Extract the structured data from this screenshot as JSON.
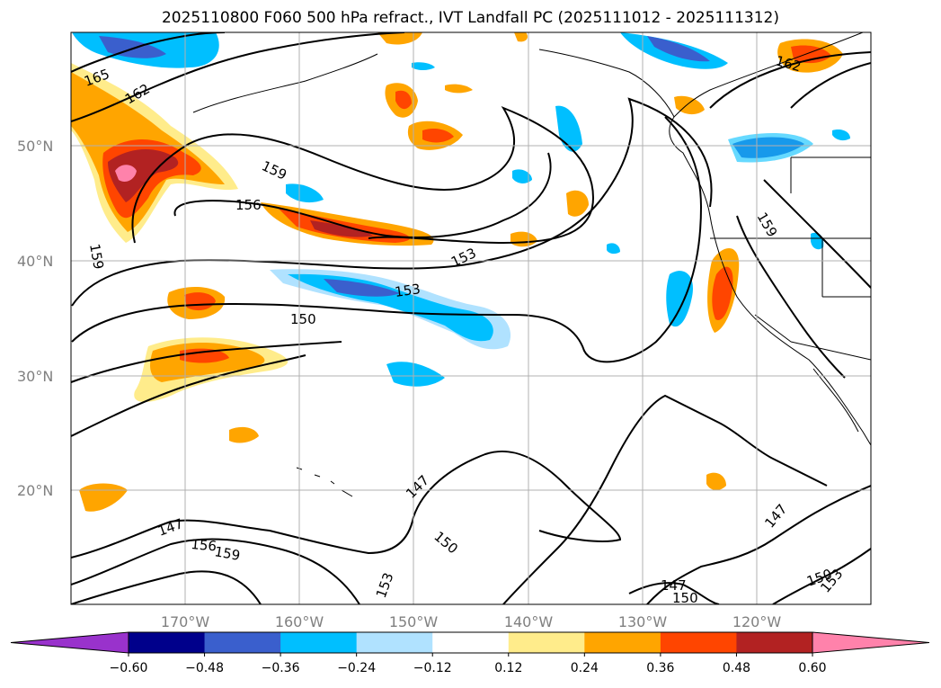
{
  "title": "2025110800 F060 500 hPa refract., IVT Landfall PC (2025111012 - 2025111312)",
  "lat_labels": [
    "50°N",
    "40°N",
    "30°N",
    "20°N"
  ],
  "lon_labels": [
    "170°W",
    "160°W",
    "150°W",
    "140°W",
    "130°W",
    "120°W"
  ],
  "contour_labels": [
    "165",
    "162",
    "159",
    "156",
    "153",
    "153",
    "150",
    "159",
    "147",
    "156",
    "159",
    "147",
    "150",
    "153",
    "147",
    "150",
    "147",
    "150",
    "153",
    "159",
    "162"
  ],
  "colorbar": {
    "ticks": [
      "−0.60",
      "−0.48",
      "−0.36",
      "−0.24",
      "−0.12",
      "0.12",
      "0.24",
      "0.36",
      "0.48",
      "0.60"
    ],
    "colors": [
      "#9932cc",
      "#00008b",
      "#3a5fcd",
      "#00bfff",
      "#b0e2ff",
      "#ffffff",
      "#ffec8b",
      "#ffa500",
      "#ff4500",
      "#b22222",
      "#ff82ab",
      "#ff82ab"
    ]
  }
}
